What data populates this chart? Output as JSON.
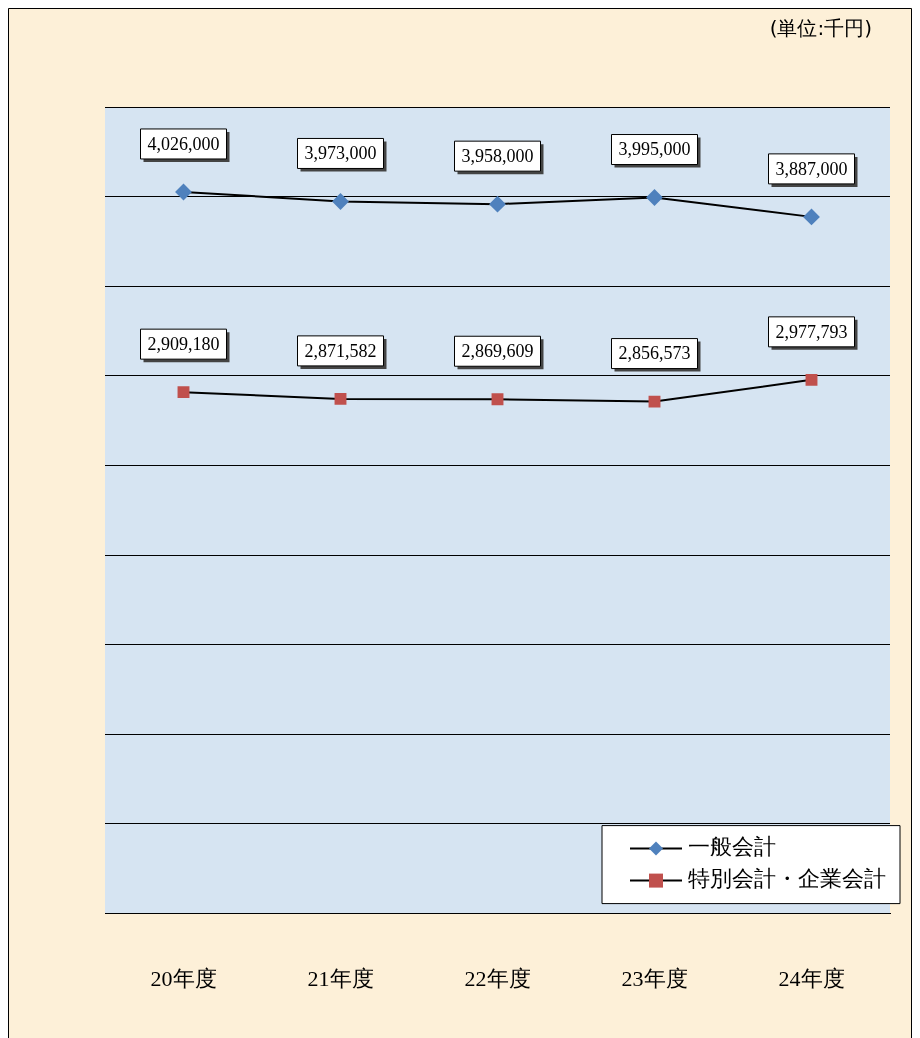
{
  "chart_data": {
    "type": "line",
    "subtitle": "(単位:千円)",
    "categories": [
      "20年度",
      "21年度",
      "22年度",
      "23年度",
      "24年度"
    ],
    "series": [
      {
        "name": "一般会計",
        "color": "#4f81bd",
        "marker": "diamond",
        "values": [
          4026000,
          3973000,
          3958000,
          3995000,
          3887000
        ],
        "value_labels": [
          "4,026,000",
          "3,973,000",
          "3,958,000",
          "3,995,000",
          "3,887,000"
        ]
      },
      {
        "name": "特別会計・企業会計",
        "color": "#c0504d",
        "marker": "square",
        "values": [
          2909180,
          2871582,
          2869609,
          2856573,
          2977793
        ],
        "value_labels": [
          "2,909,180",
          "2,871,582",
          "2,869,609",
          "2,856,573",
          "2,977,793"
        ]
      }
    ],
    "tick_labels": "x",
    "grid": "y",
    "legend": "bottom right",
    "line_style": "solid"
  }
}
